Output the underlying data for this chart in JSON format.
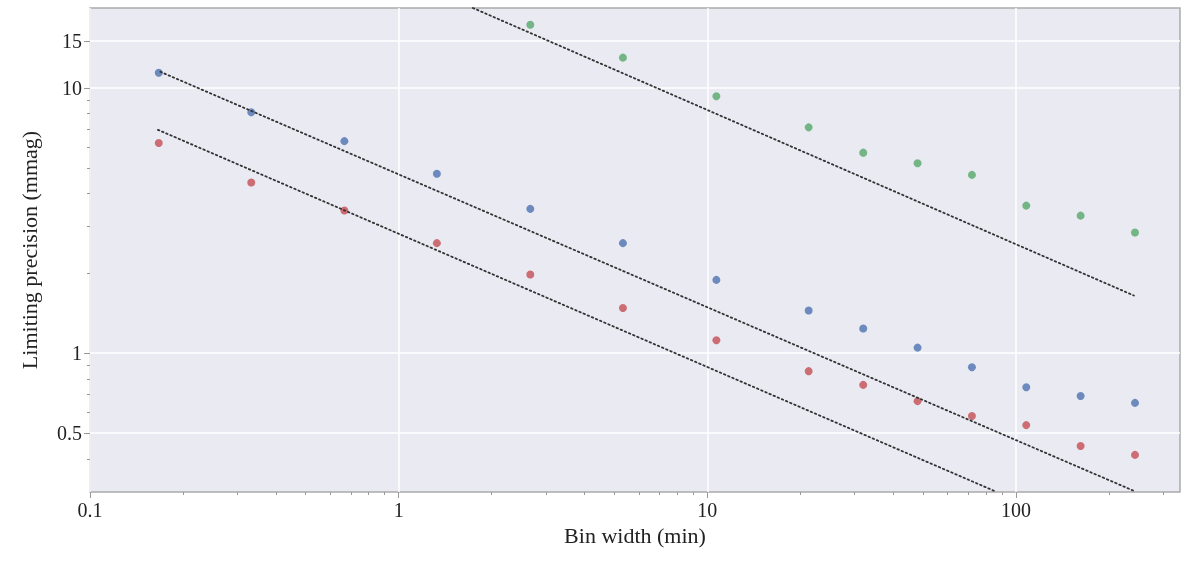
{
  "chart_data": {
    "type": "scatter",
    "xlabel": "Bin width (min)",
    "ylabel": "Limiting precision (mmag)",
    "log": "xy",
    "grid": true,
    "marker": "circle",
    "xlim": [
      0.1,
      340
    ],
    "xticks": [
      0.1,
      1,
      10,
      100
    ],
    "ylim": [
      0.3,
      20
    ],
    "yticks": [
      0.5,
      1,
      10,
      15
    ],
    "series": [
      {
        "color": "#4c72b0",
        "x": [
          0.167,
          0.333,
          0.667,
          1.33,
          2.67,
          5.33,
          10.7,
          21.3,
          32,
          48,
          72,
          108,
          162,
          243
        ],
        "values": [
          11.4,
          8.1,
          6.3,
          4.75,
          3.5,
          2.6,
          1.89,
          1.45,
          1.24,
          1.05,
          0.886,
          0.745,
          0.69,
          0.65
        ]
      },
      {
        "color": "#c44e52",
        "x": [
          0.167,
          0.333,
          0.667,
          1.33,
          2.67,
          5.33,
          10.7,
          21.3,
          32,
          48,
          72,
          108,
          162,
          243
        ],
        "values": [
          6.2,
          4.4,
          3.45,
          2.6,
          1.98,
          1.48,
          1.12,
          0.856,
          0.76,
          0.66,
          0.58,
          0.536,
          0.447,
          0.414
        ]
      },
      {
        "color": "#55a868",
        "x": [
          2.67,
          5.33,
          10.7,
          21.3,
          32,
          48,
          72,
          108,
          162,
          243
        ],
        "values": [
          17.3,
          13.0,
          9.3,
          7.1,
          5.7,
          5.2,
          4.7,
          3.6,
          3.3,
          2.85
        ]
      },
      {
        "type": "line",
        "color": "#333333",
        "line_style": "dotted",
        "marker": "none",
        "x": [
          0.169,
          241
        ],
        "values": [
          11.5,
          0.303
        ]
      },
      {
        "type": "line",
        "color": "#333333",
        "line_style": "dotted",
        "marker": "none",
        "x": [
          0.166,
          85
        ],
        "values": [
          6.95,
          0.303
        ]
      },
      {
        "type": "line",
        "color": "#333333",
        "line_style": "dotted",
        "marker": "none",
        "x": [
          1.74,
          241
        ],
        "values": [
          20,
          1.65
        ]
      }
    ]
  }
}
